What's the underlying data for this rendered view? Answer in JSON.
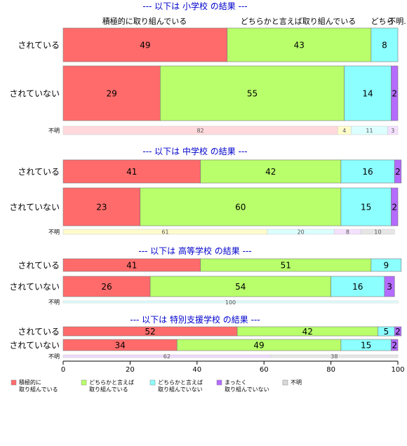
{
  "chart_data": {
    "type": "bar",
    "orientation": "horizontal",
    "stacked": "percent",
    "xlim": [
      0,
      100
    ],
    "xticks": [
      0,
      20,
      40,
      60,
      80,
      100
    ],
    "grid": false,
    "legend_position": "bottom",
    "legend": [
      {
        "line1": "積極的に",
        "line2": "取り組んでいる",
        "color": "#ff6b6b"
      },
      {
        "line1": "どちらかと言えば",
        "line2": "取り組んでいる",
        "color": "#b8ff6b"
      },
      {
        "line1": "どちらかと言えば",
        "line2": "取り組んでいない",
        "color": "#8cffff"
      },
      {
        "line1": "まったく",
        "line2": "取り組んでいない",
        "color": "#b46bff"
      },
      {
        "line1": "不明",
        "line2": "",
        "color": "#d9d9d9"
      }
    ],
    "top_headers": [
      "積極的に取り組んでいる",
      "どちらかと言えば取り組んでいる",
      "どちら",
      "不明."
    ],
    "groups": [
      {
        "title": "--- 以下は 小学校 の結果 ---",
        "rows": [
          {
            "label": "されている",
            "values": [
              49,
              43,
              8,
              0,
              0
            ]
          },
          {
            "label": "されていない",
            "values": [
              29,
              55,
              14,
              2,
              0
            ]
          },
          {
            "label": "不明",
            "values": [
              0,
              82,
              4,
              11,
              3
            ],
            "colors": [
              "#ff6b6b",
              "#ffd9dc",
              "#fffccc",
              "#dcffff",
              "#f5e0ff"
            ]
          }
        ]
      },
      {
        "title": "--- 以下は 中学校 の結果 ---",
        "rows": [
          {
            "label": "されている",
            "values": [
              41,
              42,
              16,
              2,
              0
            ]
          },
          {
            "label": "されていない",
            "values": [
              23,
              60,
              15,
              2,
              0
            ]
          },
          {
            "label": "不明",
            "values": [
              0,
              61,
              20,
              8,
              10
            ],
            "colors": [
              "#ffd9dc",
              "#fffccc",
              "#dcffff",
              "#f5e0ff",
              "#e6e6e6"
            ]
          }
        ]
      },
      {
        "title": "--- 以下は 高等学校 の結果 ---",
        "rows": [
          {
            "label": "されている",
            "values": [
              41,
              51,
              9,
              0,
              0
            ]
          },
          {
            "label": "されていない",
            "values": [
              26,
              54,
              16,
              3,
              0
            ]
          },
          {
            "label": "不明",
            "values": [
              0,
              0,
              100,
              0,
              0
            ],
            "colors": [
              "#ffd9dc",
              "#fffccc",
              "#dcffff",
              "#f5e0ff",
              "#e6e6e6"
            ]
          }
        ]
      },
      {
        "title": "--- 以下は 特別支援学校 の結果 ---",
        "rows": [
          {
            "label": "されている",
            "values": [
              52,
              42,
              5,
              2,
              0
            ]
          },
          {
            "label": "されていない",
            "values": [
              34,
              49,
              15,
              2,
              0
            ]
          },
          {
            "label": "不明",
            "values": [
              0,
              0,
              62,
              38,
              0
            ],
            "colors": [
              "#ffd9dc",
              "#fffccc",
              "#f0d9ff",
              "#e6e6e6",
              "#e6e6e6"
            ]
          }
        ]
      }
    ]
  }
}
